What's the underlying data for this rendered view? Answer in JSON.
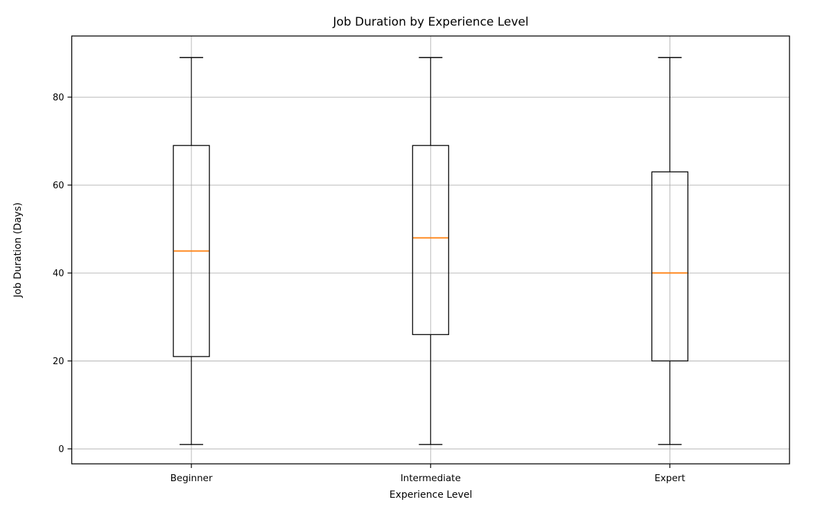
{
  "chart_data": {
    "type": "boxplot",
    "title": "Job Duration by Experience Level",
    "xlabel": "Experience Level",
    "ylabel": "Job Duration (Days)",
    "categories": [
      "Beginner",
      "Intermediate",
      "Expert"
    ],
    "series": [
      {
        "name": "Beginner",
        "whisker_low": 1,
        "q1": 21,
        "median": 45,
        "q3": 69,
        "whisker_high": 89
      },
      {
        "name": "Intermediate",
        "whisker_low": 1,
        "q1": 26,
        "median": 48,
        "q3": 69,
        "whisker_high": 89
      },
      {
        "name": "Expert",
        "whisker_low": 1,
        "q1": 20,
        "median": 40,
        "q3": 63,
        "whisker_high": 89
      }
    ],
    "yticks": [
      0,
      20,
      40,
      60,
      80
    ],
    "ylim": [
      -3.4,
      93.9
    ],
    "grid": true,
    "legend": "none",
    "colors": {
      "box_outline": "#000000",
      "median": "#ff7f0e",
      "grid": "#b0b0b0",
      "axis": "#000000",
      "background": "#ffffff"
    }
  }
}
